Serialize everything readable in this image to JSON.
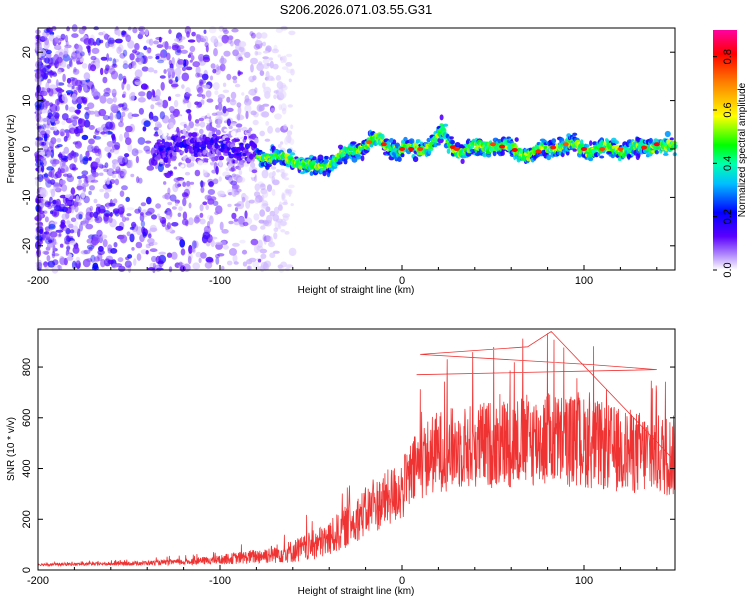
{
  "title": "S206.2026.071.03.55.G31",
  "chart_data": [
    {
      "type": "heatmap",
      "title": "",
      "xlabel": "Height of straight line (km)",
      "ylabel": "Frequency (Hz)",
      "xlim": [
        -200,
        150
      ],
      "ylim": [
        -25,
        25
      ],
      "xticks": [
        -200,
        -100,
        0,
        100
      ],
      "xtick_labels": [
        "-200",
        "-100",
        "0",
        "100"
      ],
      "yticks": [
        -20,
        -10,
        0,
        10,
        20
      ],
      "ytick_labels": [
        "-20",
        "-10",
        "0",
        "10",
        "20"
      ],
      "ridge": {
        "description_note": "dominant frequency track (Hz) vs height (km)",
        "x": [
          -200,
          -150,
          -130,
          -110,
          -95,
          -80,
          -70,
          -60,
          -50,
          -40,
          -30,
          -20,
          -15,
          -10,
          0,
          10,
          20,
          22,
          25,
          30,
          40,
          50,
          60,
          70,
          80,
          90,
          100,
          110,
          120,
          130,
          140,
          150
        ],
        "freq": [
          0,
          0,
          0,
          1,
          0,
          -1,
          -2,
          -2,
          -4,
          -3,
          -1,
          1,
          2,
          1,
          0,
          0,
          2,
          4,
          1,
          0,
          0,
          1,
          0,
          -1,
          0,
          1,
          0,
          0,
          0,
          0,
          1,
          0
        ]
      },
      "hotspots_x": [
        -18,
        -10,
        0,
        5,
        10,
        28,
        30,
        50,
        55,
        62,
        75,
        83,
        90,
        100,
        110,
        120,
        133,
        140
      ],
      "colorbar": {
        "label": "Normalized spectral amplitude",
        "range": [
          0,
          0.9
        ],
        "ticks": [
          0.0,
          0.2,
          0.4,
          0.6,
          0.8
        ],
        "tick_labels": [
          "0.0",
          "0.2",
          "0.4",
          "0.6",
          "0.8"
        ],
        "colors": [
          "#ffffff",
          "#a070ff",
          "#0000ff",
          "#00ffff",
          "#00ff00",
          "#ffff00",
          "#ff8000",
          "#ff0000",
          "#ff00a0"
        ]
      }
    },
    {
      "type": "line",
      "title": "",
      "xlabel": "Height of straight line (km)",
      "ylabel": "SNR (10 * v/v)",
      "xlim": [
        -200,
        150
      ],
      "ylim": [
        0,
        950
      ],
      "xticks": [
        -200,
        -100,
        0,
        100
      ],
      "xtick_labels": [
        "-200",
        "-100",
        "0",
        "100"
      ],
      "yticks": [
        0,
        200,
        400,
        600,
        800
      ],
      "ytick_labels": [
        "0",
        "200",
        "400",
        "600",
        "800"
      ],
      "color": "#ef3333",
      "envelope": {
        "x": [
          -200,
          -160,
          -120,
          -100,
          -80,
          -60,
          -50,
          -40,
          -30,
          -20,
          -10,
          0,
          5,
          10,
          20,
          40,
          60,
          80,
          100,
          120,
          150
        ],
        "baseline": [
          20,
          22,
          28,
          35,
          45,
          60,
          75,
          100,
          150,
          200,
          240,
          280,
          330,
          380,
          420,
          440,
          450,
          460,
          450,
          420,
          400
        ],
        "spread": [
          8,
          10,
          18,
          28,
          45,
          70,
          90,
          110,
          130,
          150,
          170,
          190,
          210,
          230,
          250,
          260,
          280,
          290,
          280,
          260,
          250
        ]
      },
      "peaks": [
        {
          "x": 82,
          "y": 940
        },
        {
          "x": 69,
          "y": 880
        },
        {
          "x": 10,
          "y": 850
        },
        {
          "x": 103,
          "y": 810
        },
        {
          "x": 140,
          "y": 790
        },
        {
          "x": 8,
          "y": 770
        }
      ]
    }
  ]
}
